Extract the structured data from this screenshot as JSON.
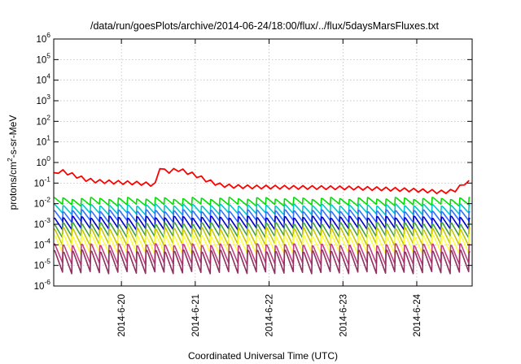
{
  "chart_data": {
    "type": "line",
    "title": "/data/run/goesPlots/archive/2014-06-24/18:00/flux/../flux/5daysMarsFluxes.txt",
    "xlabel": "Coordinated Universal Time (UTC)",
    "ylabel": "protons/cm²-s-sr-MeV",
    "ylabel_parts": {
      "base": "protons/cm",
      "sup": "2",
      "rest": "-s-sr-MeV"
    },
    "y_scale": "log",
    "ylim": [
      1e-06,
      1000000.0
    ],
    "y_ticks": [
      {
        "base": "10",
        "exp": "-6"
      },
      {
        "base": "10",
        "exp": "-5"
      },
      {
        "base": "10",
        "exp": "-4"
      },
      {
        "base": "10",
        "exp": "-3"
      },
      {
        "base": "10",
        "exp": "-2"
      },
      {
        "base": "10",
        "exp": "-1"
      },
      {
        "base": "10",
        "exp": "0"
      },
      {
        "base": "10",
        "exp": "1"
      },
      {
        "base": "10",
        "exp": "2"
      },
      {
        "base": "10",
        "exp": "3"
      },
      {
        "base": "10",
        "exp": "4"
      },
      {
        "base": "10",
        "exp": "5"
      },
      {
        "base": "10",
        "exp": "6"
      }
    ],
    "xlim": [
      "2014-06-19 02:00",
      "2014-06-24 18:00"
    ],
    "x_ticks": [
      "2014-6-20",
      "2014-6-21",
      "2014-6-22",
      "2014-6-23",
      "2014-6-24"
    ],
    "x_tick_values": [
      "2014-06-20 00:00",
      "2014-06-21 00:00",
      "2014-06-22 00:00",
      "2014-06-23 00:00",
      "2014-06-24 00:00"
    ],
    "grid": true,
    "legend": "none",
    "sawtooth_period_hours": 3,
    "series": [
      {
        "color": "#ff0000",
        "points": [
          [
            "2014-06-19 02:00",
            0.32
          ],
          [
            "2014-06-19 04:00",
            0.5
          ],
          [
            "2014-06-19 06:00",
            0.4
          ],
          [
            "2014-06-19 09:00",
            0.28
          ],
          [
            "2014-06-19 12:00",
            0.19
          ],
          [
            "2014-06-19 16:00",
            0.15
          ],
          [
            "2014-06-19 20:00",
            0.14
          ],
          [
            "2014-06-20 00:00",
            0.13
          ],
          [
            "2014-06-20 06:00",
            0.12
          ],
          [
            "2014-06-20 10:00",
            0.105
          ],
          [
            "2014-06-20 11:30",
            0.105
          ],
          [
            "2014-06-20 12:00",
            0.5
          ],
          [
            "2014-06-20 14:00",
            0.48
          ],
          [
            "2014-06-20 16:00",
            0.45
          ],
          [
            "2014-06-20 18:00",
            0.58
          ],
          [
            "2014-06-20 20:00",
            0.48
          ],
          [
            "2014-06-21 00:00",
            0.3
          ],
          [
            "2014-06-21 04:00",
            0.16
          ],
          [
            "2014-06-21 08:00",
            0.1
          ],
          [
            "2014-06-21 12:00",
            0.085
          ],
          [
            "2014-06-21 18:00",
            0.08
          ],
          [
            "2014-06-22 00:00",
            0.078
          ],
          [
            "2014-06-22 12:00",
            0.075
          ],
          [
            "2014-06-23 00:00",
            0.072
          ],
          [
            "2014-06-23 12:00",
            0.065
          ],
          [
            "2014-06-24 00:00",
            0.055
          ],
          [
            "2014-06-24 08:00",
            0.045
          ],
          [
            "2014-06-24 12:00",
            0.05
          ],
          [
            "2014-06-24 15:00",
            0.1
          ],
          [
            "2014-06-24 16:00",
            0.15
          ],
          [
            "2014-06-24 18:00",
            0.12
          ]
        ],
        "sawtooth_amplitude": 1.5
      },
      {
        "color": "#00e000",
        "peak": 0.018,
        "trough": 0.0085
      },
      {
        "color": "#00c8c8",
        "peak": 0.0085,
        "trough": 0.0032
      },
      {
        "color": "#3070ff",
        "peak": 0.0045,
        "trough": 0.0014
      },
      {
        "color": "#0000d0",
        "peak": 0.0022,
        "trough": 0.0006
      },
      {
        "color": "#40a040",
        "peak": 0.0011,
        "trough": 0.00025
      },
      {
        "color": "#c8c800",
        "peak": 0.0006,
        "trough": 0.0001
      },
      {
        "color": "#ffff40",
        "peak": 0.00028,
        "trough": 4e-05
      },
      {
        "color": "#c04080",
        "peak": 0.0001,
        "trough": 1.2e-05
      },
      {
        "color": "#903060",
        "peak": 5e-05,
        "trough": 4.5e-06
      }
    ]
  }
}
